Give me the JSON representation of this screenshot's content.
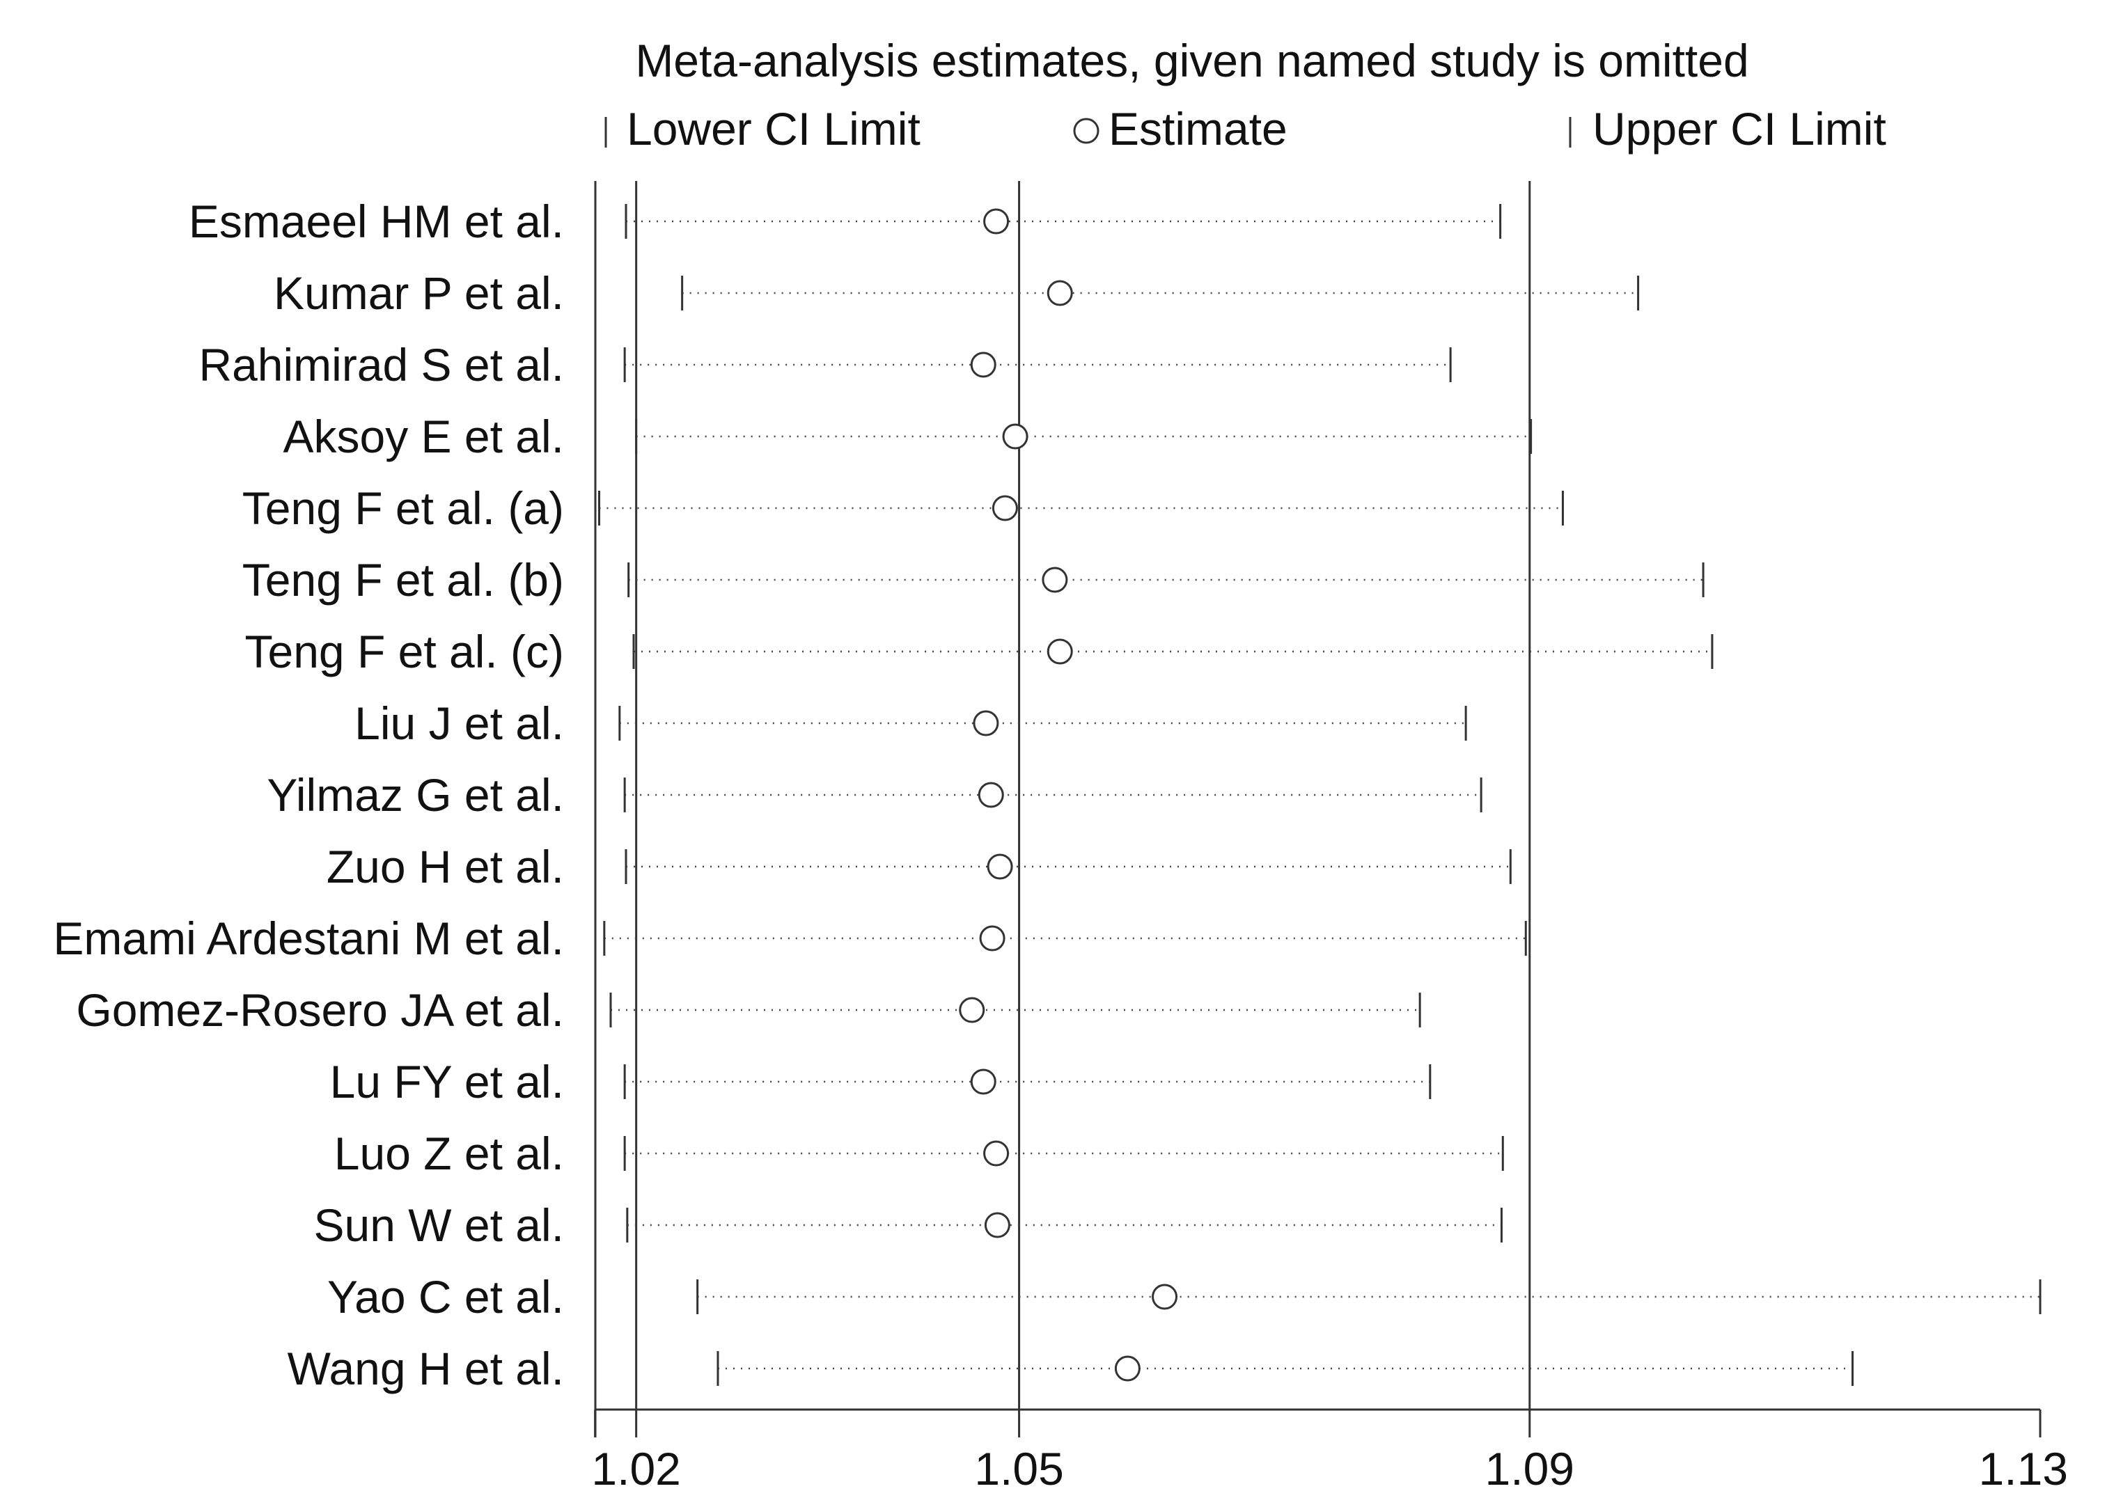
{
  "chart_data": {
    "type": "forest",
    "title": "Meta-analysis estimates, given named study is omitted",
    "legend": {
      "lower": "Lower CI Limit",
      "estimate": "Estimate",
      "upper": "Upper CI Limit"
    },
    "x_ticks": [
      1.01678,
      1.02,
      1.05,
      1.09,
      1.13
    ],
    "x_tick_labels": [
      "",
      "1.02",
      "1.05",
      "1.09",
      "1.13"
    ],
    "x_range": [
      1.0168,
      1.13
    ],
    "reference_lines": [
      1.02,
      1.05,
      1.09
    ],
    "studies": [
      {
        "name": "Esmaeel HM et al.",
        "lower": 1.0192,
        "estimate": 1.0482,
        "upper": 1.0877
      },
      {
        "name": "Kumar P et al.",
        "lower": 1.0236,
        "estimate": 1.0532,
        "upper": 1.0985
      },
      {
        "name": "Rahimirad S et al.",
        "lower": 1.0191,
        "estimate": 1.0472,
        "upper": 1.0838
      },
      {
        "name": "Aksoy E et al.",
        "lower": 1.02,
        "estimate": 1.0497,
        "upper": 1.0901
      },
      {
        "name": "Teng F et al. (a)",
        "lower": 1.0171,
        "estimate": 1.0489,
        "upper": 1.0926
      },
      {
        "name": "Teng F et al. (b)",
        "lower": 1.0194,
        "estimate": 1.0528,
        "upper": 1.1036
      },
      {
        "name": "Teng F et al. (c)",
        "lower": 1.0198,
        "estimate": 1.0532,
        "upper": 1.1043
      },
      {
        "name": "Liu J et al.",
        "lower": 1.0187,
        "estimate": 1.0474,
        "upper": 1.085
      },
      {
        "name": "Yilmaz G et al.",
        "lower": 1.0191,
        "estimate": 1.0478,
        "upper": 1.0862
      },
      {
        "name": "Zuo H et al.",
        "lower": 1.0192,
        "estimate": 1.0485,
        "upper": 1.0885
      },
      {
        "name": "Emami Ardestani M et al.",
        "lower": 1.0175,
        "estimate": 1.0479,
        "upper": 1.0897
      },
      {
        "name": "Gomez-Rosero JA et al.",
        "lower": 1.018,
        "estimate": 1.0463,
        "upper": 1.0814
      },
      {
        "name": "Lu FY et al.",
        "lower": 1.0191,
        "estimate": 1.0472,
        "upper": 1.0822
      },
      {
        "name": "Luo Z et al.",
        "lower": 1.0191,
        "estimate": 1.0482,
        "upper": 1.0879
      },
      {
        "name": "Sun W et al.",
        "lower": 1.0193,
        "estimate": 1.0483,
        "upper": 1.0878
      },
      {
        "name": "Yao C et al.",
        "lower": 1.0248,
        "estimate": 1.0614,
        "upper": 1.13
      },
      {
        "name": "Wang H et al.",
        "lower": 1.0264,
        "estimate": 1.0585,
        "upper": 1.1153
      }
    ]
  }
}
